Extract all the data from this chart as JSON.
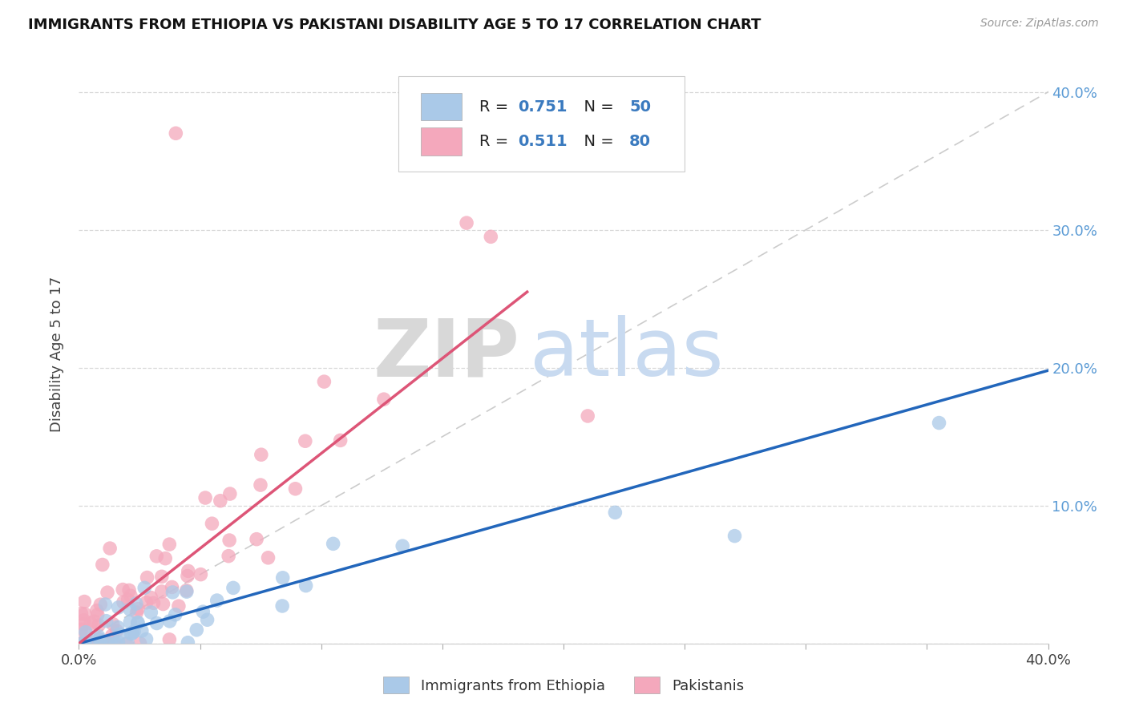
{
  "title": "IMMIGRANTS FROM ETHIOPIA VS PAKISTANI DISABILITY AGE 5 TO 17 CORRELATION CHART",
  "source": "Source: ZipAtlas.com",
  "ylabel": "Disability Age 5 to 17",
  "xlim": [
    0.0,
    0.4
  ],
  "ylim": [
    0.0,
    0.42
  ],
  "x_ticks": [
    0.0,
    0.05,
    0.1,
    0.15,
    0.2,
    0.25,
    0.3,
    0.35,
    0.4
  ],
  "y_ticks": [
    0.0,
    0.1,
    0.2,
    0.3,
    0.4
  ],
  "blue_R": 0.751,
  "blue_N": 50,
  "pink_R": 0.511,
  "pink_N": 80,
  "blue_color": "#aac9e8",
  "pink_color": "#f4a8bc",
  "blue_line_color": "#2266bb",
  "pink_line_color": "#dd5577",
  "diag_line_color": "#cccccc",
  "watermark_ZIP": "ZIP",
  "watermark_atlas": "atlas",
  "legend_blue_label": "Immigrants from Ethiopia",
  "legend_pink_label": "Pakistanis",
  "title_color": "#111111",
  "axis_label_color": "#444444",
  "tick_color_right": "#5b9bd5",
  "blue_line_x0": 0.0,
  "blue_line_y0": 0.0,
  "blue_line_x1": 0.4,
  "blue_line_y1": 0.198,
  "pink_line_x0": 0.0,
  "pink_line_y0": 0.0,
  "pink_line_x1": 0.185,
  "pink_line_y1": 0.255
}
